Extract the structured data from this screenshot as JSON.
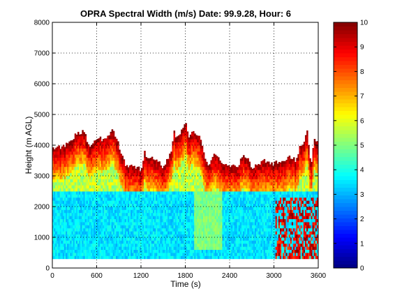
{
  "chart_data": {
    "type": "heatmap",
    "title": "OPRA Spectral Width (m/s)  Date: 99.9.28, Hour: 6",
    "xlabel": "Time (s)",
    "ylabel": "Height (m AGL)",
    "xlim": [
      0,
      3600
    ],
    "ylim": [
      0,
      8000
    ],
    "x_ticks": [
      0,
      600,
      1200,
      1800,
      2400,
      3000,
      3600
    ],
    "x_tick_labels": [
      "0",
      "600",
      "1200",
      "1800",
      "2400",
      "3000",
      "3600"
    ],
    "y_ticks": [
      0,
      1000,
      2000,
      3000,
      4000,
      5000,
      6000,
      7000,
      8000
    ],
    "y_tick_labels": [
      "0",
      "1000",
      "2000",
      "3000",
      "4000",
      "5000",
      "6000",
      "7000",
      "8000"
    ],
    "grid": "dotted",
    "colorbar": {
      "range": [
        0,
        10
      ],
      "ticks": [
        0,
        1,
        2,
        3,
        4,
        5,
        6,
        7,
        8,
        9,
        10
      ],
      "tick_labels": [
        "0",
        "1",
        "2",
        "3",
        "4",
        "5",
        "6",
        "7",
        "8",
        "9",
        "10"
      ],
      "colormap": "jet",
      "position": "right"
    },
    "data_bottom_height_m": 300,
    "top_height_m": {
      "time_s": [
        0,
        150,
        300,
        420,
        500,
        600,
        700,
        800,
        850,
        900,
        1000,
        1100,
        1200,
        1250,
        1300,
        1400,
        1500,
        1600,
        1650,
        1700,
        1750,
        1800,
        1850,
        1900,
        2000,
        2100,
        2200,
        2300,
        2400,
        2500,
        2600,
        2700,
        2800,
        2900,
        3000,
        3100,
        3200,
        3300,
        3350,
        3400,
        3450,
        3500,
        3550,
        3600
      ],
      "height_m": [
        3900,
        3950,
        4300,
        4450,
        4000,
        4250,
        4150,
        4500,
        4350,
        4000,
        3300,
        3300,
        3200,
        3800,
        3500,
        3600,
        3300,
        3700,
        4400,
        4200,
        4500,
        4800,
        4300,
        4500,
        4300,
        3300,
        3700,
        3400,
        3300,
        3300,
        3700,
        3300,
        3400,
        3500,
        3400,
        3500,
        3600,
        3500,
        3900,
        4100,
        4400,
        3300,
        4200,
        4100
      ]
    },
    "layers": [
      {
        "height_m": [
          300,
          2500
        ],
        "width_m_s": [
          3.2,
          4.2
        ],
        "description": "cyan/light-blue boundary-layer region"
      },
      {
        "height_m": [
          2500,
          3300
        ],
        "width_m_s": [
          4.5,
          6.5
        ],
        "description": "yellow/green transition band"
      },
      {
        "height_m": [
          3300,
          4800
        ],
        "width_m_s": [
          7.5,
          10
        ],
        "description": "orange to dark-red cloud-top region"
      }
    ],
    "features": [
      {
        "time_s": [
          3050,
          3600
        ],
        "height_m": [
          300,
          2300
        ],
        "width_m_s": [
          8,
          10
        ],
        "description": "high spectral width streaks near surface at end of hour"
      },
      {
        "time_s": [
          1900,
          2300
        ],
        "height_m": [
          500,
          2500
        ],
        "width_m_s": [
          4.5,
          5.5
        ],
        "description": "greenish patch"
      }
    ]
  }
}
